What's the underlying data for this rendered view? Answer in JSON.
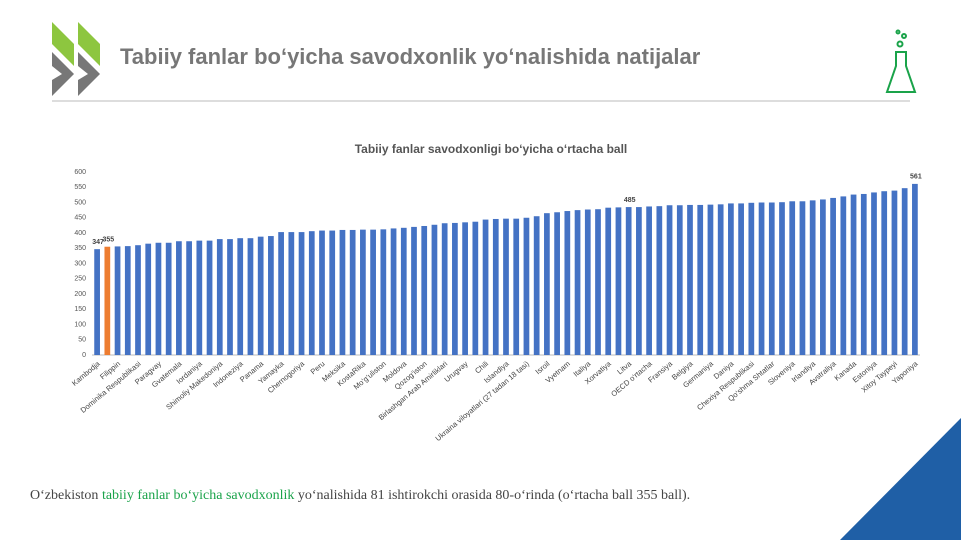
{
  "header": {
    "title": "Tabiiy fanlar bo‘yicha savodxonlik yo‘nalishida natijalar"
  },
  "caption": {
    "before": "O‘zbekiston ",
    "highlight": "tabiiy fanlar bo‘yicha savodxonlik",
    "after": " yo‘nalishida 81 ishtirokchi orasida 80-o‘rinda (o‘rtacha ball 355 ball)."
  },
  "chart_data": {
    "type": "bar",
    "title": "Tabiiy fanlar savodxonligi bo‘yicha o‘rtacha ball",
    "categories": [
      "Kambodja",
      null,
      "Filippin",
      null,
      "Dominika Respublikasi",
      null,
      "Paragvay",
      null,
      "Gvatemala",
      null,
      "Iordaniya",
      null,
      "Shimoliy Makedoniya",
      null,
      "Indoneziya",
      null,
      "Panama",
      null,
      "Yamayka",
      null,
      "Chernogoriya",
      null,
      "Peru",
      null,
      "Meksika",
      null,
      "KostaRika",
      null,
      "Mo‘g‘uliston",
      null,
      "Moldova",
      null,
      "Qozog‘iston",
      null,
      "Birlashgan Arab Amirliklari",
      null,
      "Urugvay",
      null,
      "Chili",
      null,
      "Islandiya",
      null,
      "Ukraina viloyatlari (27 tadan 18 tasi)",
      null,
      "Isroil",
      null,
      "Vyetnam",
      null,
      "Italiya",
      null,
      "Xorvatiya",
      null,
      "Litva",
      null,
      "OECD o‘rtacha",
      null,
      "Fransiya",
      null,
      "Belgiya",
      null,
      "Germaniya",
      null,
      "Daniya",
      null,
      "Chexiya Respublikasi",
      null,
      "Qo‘shma Shtatlar",
      null,
      "Sloveniya",
      null,
      "Irlandiya",
      null,
      "Avstraliya",
      null,
      "Kanada",
      null,
      "Estoniya",
      null,
      "Xitoy Taypeyi",
      null,
      "Yaponiya"
    ],
    "values": [
      347,
      355,
      356,
      357,
      360,
      365,
      368,
      368,
      373,
      373,
      375,
      375,
      380,
      380,
      383,
      383,
      388,
      390,
      403,
      403,
      403,
      406,
      408,
      408,
      410,
      410,
      411,
      411,
      412,
      415,
      417,
      420,
      423,
      427,
      432,
      433,
      435,
      437,
      444,
      446,
      447,
      447,
      450,
      455,
      465,
      468,
      472,
      475,
      477,
      478,
      483,
      484,
      485,
      485,
      487,
      488,
      491,
      491,
      492,
      492,
      493,
      494,
      497,
      497,
      499,
      500,
      500,
      501,
      504,
      504,
      507,
      510,
      515,
      520,
      526,
      528,
      533,
      537,
      539,
      547,
      561
    ],
    "value_labels": [
      "347",
      "355",
      null,
      null,
      null,
      null,
      null,
      null,
      null,
      null,
      null,
      null,
      null,
      null,
      null,
      null,
      null,
      null,
      null,
      null,
      null,
      null,
      null,
      null,
      null,
      null,
      null,
      null,
      null,
      null,
      null,
      null,
      null,
      null,
      null,
      null,
      null,
      null,
      null,
      null,
      null,
      null,
      null,
      null,
      null,
      null,
      null,
      null,
      null,
      null,
      null,
      null,
      "485",
      null,
      null,
      null,
      null,
      null,
      null,
      null,
      null,
      null,
      null,
      null,
      null,
      null,
      null,
      null,
      null,
      null,
      null,
      null,
      null,
      null,
      null,
      null,
      null,
      null,
      null,
      null,
      "561"
    ],
    "colors": [
      "#4472c4",
      "#ed7d31",
      "#4472c4",
      "#4472c4",
      "#4472c4",
      "#4472c4",
      "#4472c4",
      "#4472c4",
      "#4472c4",
      "#4472c4",
      "#4472c4",
      "#4472c4",
      "#4472c4",
      "#4472c4",
      "#4472c4",
      "#4472c4",
      "#4472c4",
      "#4472c4",
      "#4472c4",
      "#4472c4",
      "#4472c4",
      "#4472c4",
      "#4472c4",
      "#4472c4",
      "#4472c4",
      "#4472c4",
      "#4472c4",
      "#4472c4",
      "#4472c4",
      "#4472c4",
      "#4472c4",
      "#4472c4",
      "#4472c4",
      "#4472c4",
      "#4472c4",
      "#4472c4",
      "#4472c4",
      "#4472c4",
      "#4472c4",
      "#4472c4",
      "#4472c4",
      "#4472c4",
      "#4472c4",
      "#4472c4",
      "#4472c4",
      "#4472c4",
      "#4472c4",
      "#4472c4",
      "#4472c4",
      "#4472c4",
      "#4472c4",
      "#4472c4",
      "#4472c4",
      "#4472c4",
      "#4472c4",
      "#4472c4",
      "#4472c4",
      "#4472c4",
      "#4472c4",
      "#4472c4",
      "#4472c4",
      "#4472c4",
      "#4472c4",
      "#4472c4",
      "#4472c4",
      "#4472c4",
      "#4472c4",
      "#4472c4",
      "#4472c4",
      "#4472c4",
      "#4472c4",
      "#4472c4",
      "#4472c4",
      "#4472c4",
      "#4472c4",
      "#4472c4",
      "#4472c4",
      "#4472c4",
      "#4472c4",
      "#4472c4",
      "#4472c4"
    ],
    "ylim": [
      0,
      600
    ],
    "yticks": [
      0,
      50,
      100,
      150,
      200,
      250,
      300,
      350,
      400,
      450,
      500,
      550,
      600
    ],
    "grid": false
  }
}
